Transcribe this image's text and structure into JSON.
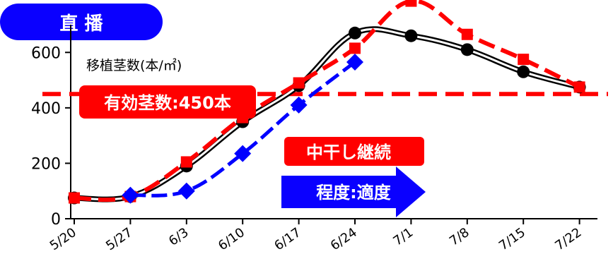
{
  "chart_data": {
    "type": "line",
    "title": "直 播",
    "ylabel": "移植茎数(本/㎡)",
    "ylim": [
      0,
      700
    ],
    "yticks": [
      0,
      200,
      400,
      600
    ],
    "categories": [
      "5/20",
      "5/27",
      "6/3",
      "6/10",
      "6/17",
      "6/24",
      "7/1",
      "7/8",
      "7/15",
      "7/22"
    ],
    "series": [
      {
        "name": "",
        "color": "#000000",
        "marker": "circle",
        "values": [
          75,
          80,
          190,
          350,
          480,
          670,
          660,
          610,
          530,
          475
        ]
      },
      {
        "name": "",
        "color": "#ff0000",
        "marker": "square",
        "values": [
          75,
          80,
          205,
          365,
          490,
          615,
          785,
          665,
          575,
          475
        ]
      },
      {
        "name": "",
        "color": "#0000ff",
        "marker": "diamond",
        "values": [
          null,
          85,
          100,
          235,
          410,
          565,
          null,
          null,
          null,
          null
        ]
      }
    ],
    "reference_line": {
      "value": 450,
      "label": "有効茎数:450本",
      "color": "#ff0000"
    },
    "annotations": [
      {
        "text": "中干し継続",
        "color": "#ff0000"
      },
      {
        "text": "程度:適度",
        "color": "#0000ff"
      }
    ]
  }
}
